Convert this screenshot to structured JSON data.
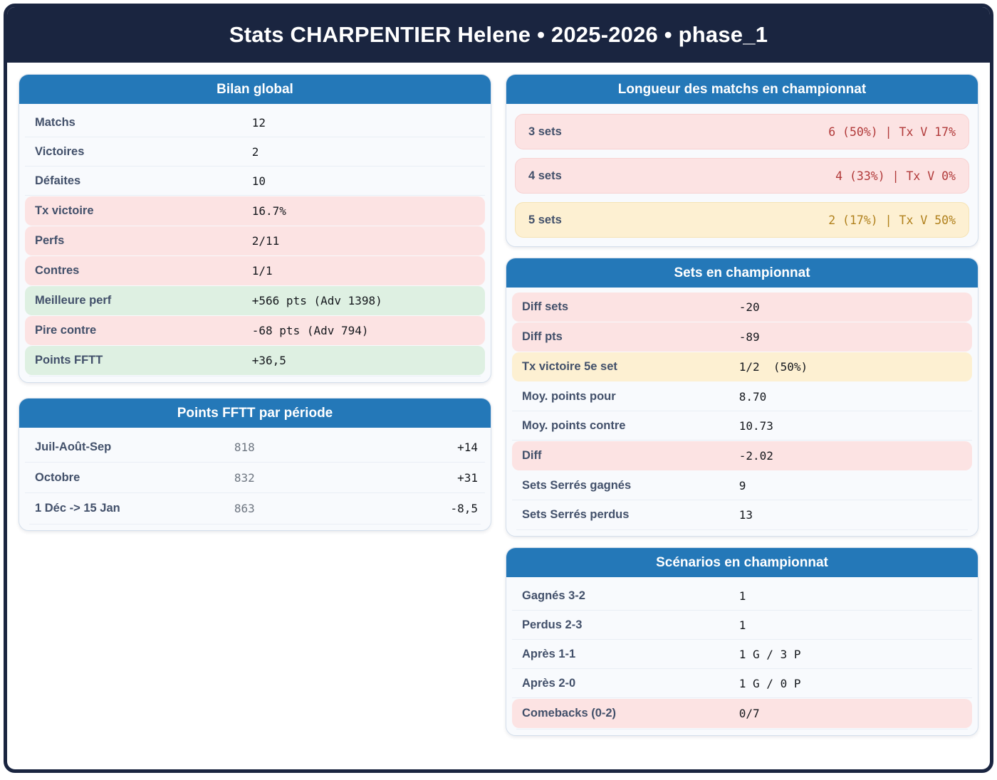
{
  "header": {
    "title": "Stats CHARPENTIER Helene • 2025-2026 • phase_1"
  },
  "colors": {
    "navy": "#1a2540",
    "accent_blue": "#2478b8",
    "highlight_pink": "#fce3e3",
    "highlight_green": "#def0e2",
    "highlight_yellow": "#fdf0d2",
    "negative_text": "#b13a3a",
    "warning_text": "#b0801c"
  },
  "cards": {
    "bilan": {
      "title": "Bilan global",
      "rows": [
        {
          "label": "Matchs",
          "value": "12"
        },
        {
          "label": "Victoires",
          "value": "2"
        },
        {
          "label": "Défaites",
          "value": "10"
        },
        {
          "label": "Tx victoire",
          "value": "16.7%"
        },
        {
          "label": "Perfs",
          "value": "2/11"
        },
        {
          "label": "Contres",
          "value": "1/1"
        },
        {
          "label": "Meilleure perf",
          "value": "+566 pts (Adv 1398)"
        },
        {
          "label": "Pire contre",
          "value": "-68 pts (Adv 794)"
        },
        {
          "label": "Points FFTT",
          "value": "+36,5"
        }
      ]
    },
    "periode": {
      "title": "Points FFTT par période",
      "rows": [
        {
          "label": "Juil-Août-Sep",
          "value": "818",
          "delta": "+14"
        },
        {
          "label": "Octobre",
          "value": "832",
          "delta": "+31"
        },
        {
          "label": "1 Déc -> 15 Jan",
          "value": "863",
          "delta": "-8,5"
        }
      ]
    },
    "longueur": {
      "title": "Longueur des matchs en championnat",
      "rows": [
        {
          "label": "3 sets",
          "value": "6 (50%) | Tx V 17%"
        },
        {
          "label": "4 sets",
          "value": "4 (33%) | Tx V 0%"
        },
        {
          "label": "5 sets",
          "value": "2 (17%) | Tx V 50%"
        }
      ]
    },
    "sets": {
      "title": "Sets en championnat",
      "rows": [
        {
          "label": "Diff sets",
          "value": "-20"
        },
        {
          "label": "Diff pts",
          "value": "-89"
        },
        {
          "label": "Tx victoire 5e set",
          "value": "1/2  (50%)"
        },
        {
          "label": "Moy. points pour",
          "value": "8.70"
        },
        {
          "label": "Moy. points contre",
          "value": "10.73"
        },
        {
          "label": "Diff",
          "value": "-2.02"
        },
        {
          "label": "Sets Serrés gagnés",
          "value": "9"
        },
        {
          "label": "Sets Serrés perdus",
          "value": "13"
        }
      ]
    },
    "scenarios": {
      "title": "Scénarios en championnat",
      "rows": [
        {
          "label": "Gagnés 3-2",
          "value": "1"
        },
        {
          "label": "Perdus 2-3",
          "value": "1"
        },
        {
          "label": "Après 1-1",
          "value": "1 G / 3 P"
        },
        {
          "label": "Après 2-0",
          "value": "1 G / 0 P"
        },
        {
          "label": "Comebacks (0-2)",
          "value": "0/7"
        }
      ]
    }
  }
}
